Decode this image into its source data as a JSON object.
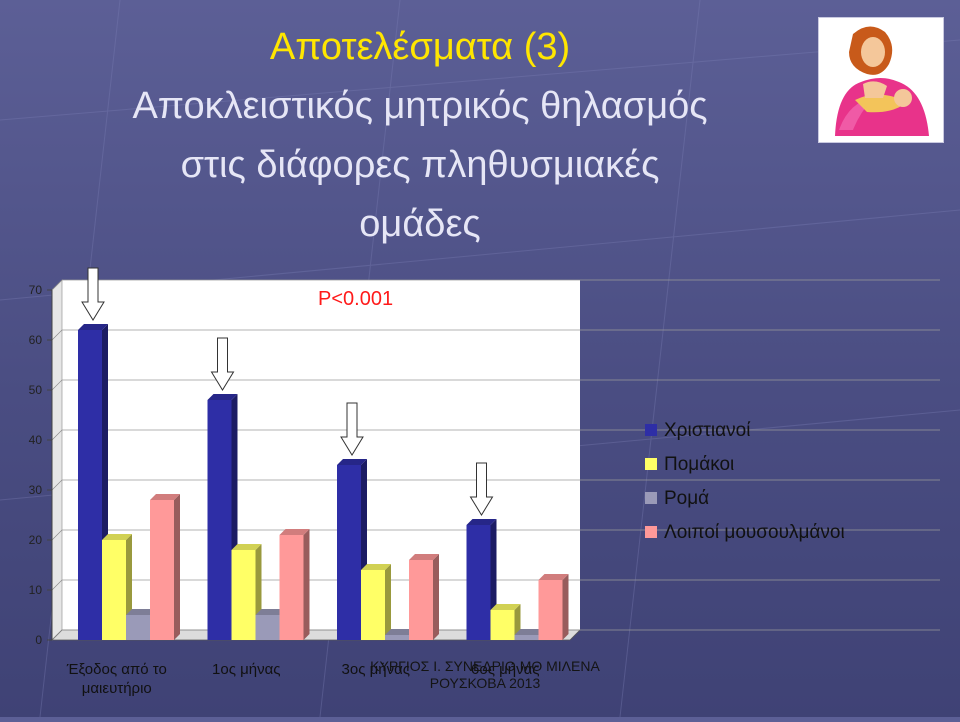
{
  "slide": {
    "title_line1": "Αποτελέσματα (3)",
    "title_line2": "Αποκλειστικός μητρικός θηλασμός",
    "title_line3": "στις διάφορες πληθυσμιακές",
    "title_line4": "ομάδες",
    "footer_line1": "ΚΥΡΓΙΟΣ Ι. ΣΥΝΕΔΡΙΟ ΜΘ ΜΙΛΕΝΑ",
    "footer_line2": "ΡΟΥΣΚΟΒΑ 2013",
    "corner_image": "breastfeeding-mother-illustration"
  },
  "chart_data": {
    "type": "bar",
    "categories": [
      "Έξοδος από το μαιευτήριο",
      "1ος μήνας",
      "3ος μήνας",
      "6ος μήνας"
    ],
    "series": [
      {
        "name": "Χριστιανοί",
        "values": [
          62,
          48,
          35,
          23
        ],
        "color": "#2e2ea6"
      },
      {
        "name": "Πομάκοι",
        "values": [
          20,
          18,
          14,
          6
        ],
        "color": "#ffff66"
      },
      {
        "name": "Ρομά",
        "values": [
          5,
          5,
          1,
          1
        ],
        "color": "#9a9ab8"
      },
      {
        "name": "Λοιποί μουσουλμάνοι",
        "values": [
          28,
          21,
          16,
          12
        ],
        "color": "#ff9999"
      }
    ],
    "ylim": [
      0,
      70
    ],
    "yticks": [
      0,
      10,
      20,
      30,
      40,
      50,
      60,
      70
    ],
    "annotation": "P<0.001",
    "annotation_color": "#ff1a1a",
    "legend_position": "right",
    "grid": true,
    "arrow_icon": "down-arrow-icon"
  }
}
